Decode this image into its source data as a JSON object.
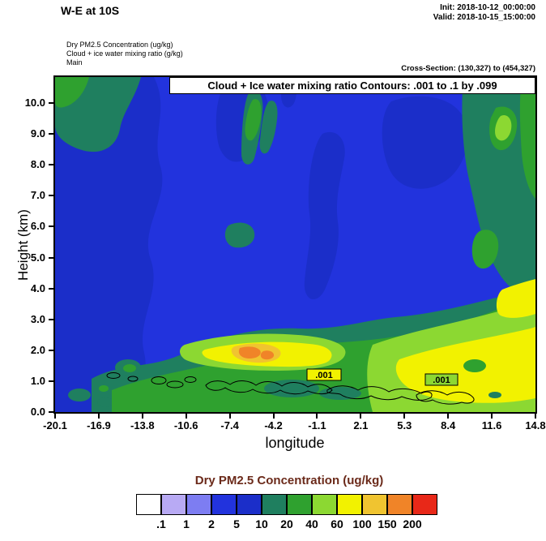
{
  "header": {
    "title": "W-E at 10S",
    "init": "Init: 2018-10-12_00:00:00",
    "valid": "Valid: 2018-10-15_15:00:00",
    "field_lines": [
      "Dry PM2.5 Concentration   (ug/kg)",
      "Cloud + ice water mixing ratio  (g/kg)",
      "Main"
    ],
    "cross_section": "Cross-Section: (130,327) to (454,327)"
  },
  "chart_data": {
    "type": "heatmap",
    "subtype": "filled-contour-vertical-cross-section",
    "title": "Cloud + Ice water mixing ratio Contours: .001 to .1 by .099",
    "xlabel": "longitude",
    "ylabel": "Height (km)",
    "x_ticks": [
      "-20.1",
      "-16.9",
      "-13.8",
      "-10.6",
      "-7.4",
      "-4.2",
      "-1.1",
      "2.1",
      "5.3",
      "8.4",
      "11.6",
      "14.8"
    ],
    "y_ticks": [
      "0.0",
      "1.0",
      "2.0",
      "3.0",
      "4.0",
      "5.0",
      "6.0",
      "7.0",
      "8.0",
      "9.0",
      "10.0"
    ],
    "xlim": [
      -20.1,
      14.8
    ],
    "ylim": [
      0.0,
      10.8
    ],
    "grid": false,
    "contour_labels": [
      ".001",
      ".001"
    ],
    "fields": [
      {
        "name": "Dry PM2.5 Concentration",
        "units": "ug/kg",
        "render": "filled contours"
      },
      {
        "name": "Cloud + ice water mixing ratio",
        "units": "g/kg",
        "render": "line contours",
        "levels": ".001 to .1 by .099"
      }
    ]
  },
  "colorbar": {
    "title": "Dry PM2.5 Concentration  (ug/kg)",
    "title_color": "#6b2a1a",
    "labels": [
      ".1",
      "1",
      "2",
      "5",
      "10",
      "20",
      "40",
      "60",
      "100",
      "150",
      "200"
    ],
    "colors": [
      "#ffffff",
      "#b8aaf4",
      "#7d7df2",
      "#2233dd",
      "#1b2ec9",
      "#1f7f5f",
      "#2fa12f",
      "#8cd832",
      "#f2f200",
      "#f0c430",
      "#f08428",
      "#e82818"
    ]
  }
}
